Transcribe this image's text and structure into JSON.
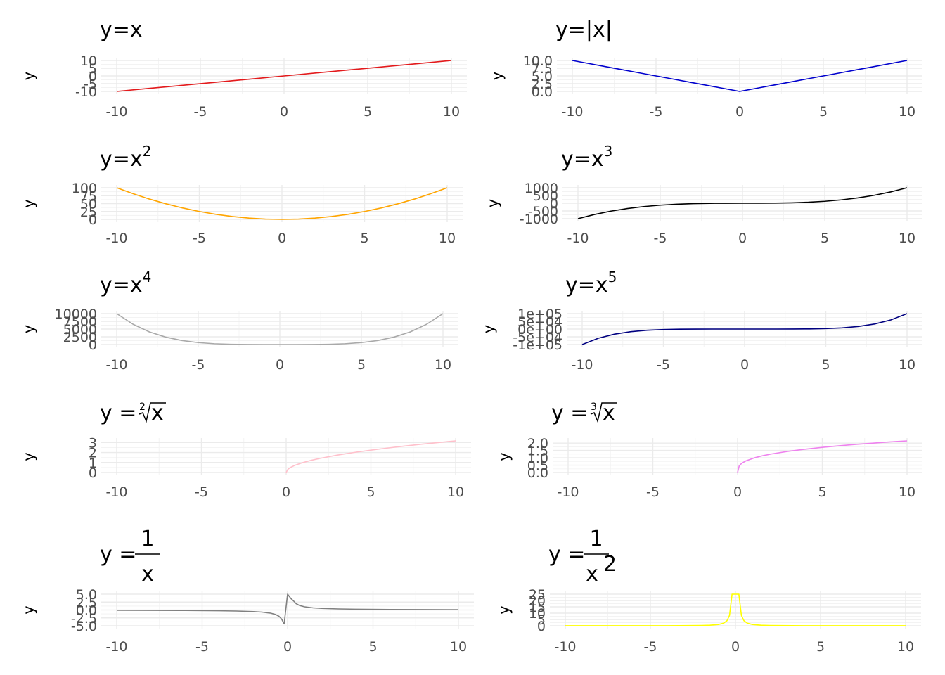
{
  "chart_data": [
    {
      "type": "line",
      "title": "y=x",
      "ylabel": "y",
      "xlim": [
        -10,
        10
      ],
      "ylim": [
        -10,
        10
      ],
      "xticks": [
        -10,
        -5,
        0,
        5,
        10
      ],
      "yticks": [
        "-10",
        "-5",
        "0",
        "5",
        "10"
      ],
      "ytick_values": [
        -10,
        -5,
        0,
        5,
        10
      ],
      "color": "#e31a1c",
      "x": [
        -10,
        -8,
        -6,
        -4,
        -2,
        0,
        2,
        4,
        6,
        8,
        10
      ],
      "y": [
        -10,
        -8,
        -6,
        -4,
        -2,
        0,
        2,
        4,
        6,
        8,
        10
      ]
    },
    {
      "type": "line",
      "title": "y=|x|",
      "ylabel": "y",
      "xlim": [
        -10,
        10
      ],
      "ylim": [
        0,
        10
      ],
      "xticks": [
        -10,
        -5,
        0,
        5,
        10
      ],
      "yticks": [
        "0.0",
        "2.5",
        "5.0",
        "7.5",
        "10.0"
      ],
      "ytick_values": [
        0,
        2.5,
        5,
        7.5,
        10
      ],
      "color": "#0000cd",
      "x": [
        -10,
        -9,
        -8,
        -7,
        -6,
        -5,
        -4,
        -3,
        -2,
        -1,
        0,
        1,
        2,
        3,
        4,
        5,
        6,
        7,
        8,
        9,
        10
      ],
      "y": [
        10,
        9,
        8,
        7,
        6,
        5,
        4,
        3,
        2,
        1,
        0,
        1,
        2,
        3,
        4,
        5,
        6,
        7,
        8,
        9,
        10
      ]
    },
    {
      "type": "line",
      "title": "y=x",
      "title_sup": "2",
      "ylabel": "y",
      "xlim": [
        -10,
        10
      ],
      "ylim": [
        0,
        100
      ],
      "xticks": [
        -10,
        -5,
        0,
        5,
        10
      ],
      "yticks": [
        "0",
        "25",
        "50",
        "75",
        "100"
      ],
      "ytick_values": [
        0,
        25,
        50,
        75,
        100
      ],
      "color": "#ffa500",
      "x": [
        -10,
        -9,
        -8,
        -7,
        -6,
        -5,
        -4,
        -3,
        -2,
        -1,
        0,
        1,
        2,
        3,
        4,
        5,
        6,
        7,
        8,
        9,
        10
      ],
      "y": [
        100,
        81,
        64,
        49,
        36,
        25,
        16,
        9,
        4,
        1,
        0,
        1,
        4,
        9,
        16,
        25,
        36,
        49,
        64,
        81,
        100
      ]
    },
    {
      "type": "line",
      "title": "y=x",
      "title_sup": "3",
      "ylabel": "y",
      "xlim": [
        -10,
        10
      ],
      "ylim": [
        -1000,
        1000
      ],
      "xticks": [
        -10,
        -5,
        0,
        5,
        10
      ],
      "yticks": [
        "-1000",
        "-500",
        "0",
        "500",
        "1000"
      ],
      "ytick_values": [
        -1000,
        -500,
        0,
        500,
        1000
      ],
      "color": "#000000",
      "x": [
        -10,
        -9,
        -8,
        -7,
        -6,
        -5,
        -4,
        -3,
        -2,
        -1,
        0,
        1,
        2,
        3,
        4,
        5,
        6,
        7,
        8,
        9,
        10
      ],
      "y": [
        -1000,
        -729,
        -512,
        -343,
        -216,
        -125,
        -64,
        -27,
        -8,
        -1,
        0,
        1,
        8,
        27,
        64,
        125,
        216,
        343,
        512,
        729,
        1000
      ]
    },
    {
      "type": "line",
      "title": "y=x",
      "title_sup": "4",
      "ylabel": "y",
      "xlim": [
        -10,
        10
      ],
      "ylim": [
        0,
        10000
      ],
      "xticks": [
        -10,
        -5,
        0,
        5,
        10
      ],
      "yticks": [
        "0",
        "2500",
        "5000",
        "7500",
        "10000"
      ],
      "ytick_values": [
        0,
        2500,
        5000,
        7500,
        10000
      ],
      "color": "#a9a9a9",
      "x": [
        -10,
        -9,
        -8,
        -7,
        -6,
        -5,
        -4,
        -3,
        -2,
        -1,
        0,
        1,
        2,
        3,
        4,
        5,
        6,
        7,
        8,
        9,
        10
      ],
      "y": [
        10000,
        6561,
        4096,
        2401,
        1296,
        625,
        256,
        81,
        16,
        1,
        0,
        1,
        16,
        81,
        256,
        625,
        1296,
        2401,
        4096,
        6561,
        10000
      ]
    },
    {
      "type": "line",
      "title": "y=x",
      "title_sup": "5",
      "ylabel": "y",
      "xlim": [
        -10,
        10
      ],
      "ylim": [
        -100000,
        100000
      ],
      "xticks": [
        -10,
        -5,
        0,
        5,
        10
      ],
      "yticks": [
        "-1e+05",
        "-5e+04",
        "0e+00",
        "5e+04",
        "1e+05"
      ],
      "ytick_values": [
        -100000,
        -50000,
        0,
        50000,
        100000
      ],
      "color": "#000080",
      "x": [
        -10,
        -9,
        -8,
        -7,
        -6,
        -5,
        -4,
        -3,
        -2,
        -1,
        0,
        1,
        2,
        3,
        4,
        5,
        6,
        7,
        8,
        9,
        10
      ],
      "y": [
        -100000,
        -59049,
        -32768,
        -16807,
        -7776,
        -3125,
        -1024,
        -243,
        -32,
        -1,
        0,
        1,
        32,
        243,
        1024,
        3125,
        7776,
        16807,
        32768,
        59049,
        100000
      ]
    },
    {
      "type": "line",
      "title": "y = ",
      "title_root_index": "2",
      "title_radicand": "x",
      "ylabel": "y",
      "xlim": [
        -10,
        10
      ],
      "ylim": [
        0,
        3.16
      ],
      "xticks": [
        -10,
        -5,
        0,
        5,
        10
      ],
      "yticks": [
        "0",
        "1",
        "2",
        "3"
      ],
      "ytick_values": [
        0,
        1,
        2,
        3
      ],
      "color": "#ffc0cb",
      "x": [
        0,
        0.1,
        0.25,
        0.5,
        1,
        1.5,
        2,
        3,
        4,
        5,
        6,
        7,
        8,
        9,
        10
      ],
      "y": [
        0,
        0.316,
        0.5,
        0.707,
        1,
        1.225,
        1.414,
        1.732,
        2,
        2.236,
        2.449,
        2.646,
        2.828,
        3,
        3.162
      ]
    },
    {
      "type": "line",
      "title": "y = ",
      "title_root_index": "3",
      "title_radicand": "x",
      "ylabel": "y",
      "xlim": [
        -10,
        10
      ],
      "ylim": [
        0,
        2.15
      ],
      "xticks": [
        -10,
        -5,
        0,
        5,
        10
      ],
      "yticks": [
        "0.0",
        "0.5",
        "1.0",
        "1.5",
        "2.0"
      ],
      "ytick_values": [
        0,
        0.5,
        1,
        1.5,
        2
      ],
      "color": "#ee82ee",
      "x": [
        0,
        0.1,
        0.25,
        0.5,
        1,
        1.5,
        2,
        3,
        4,
        5,
        6,
        7,
        8,
        9,
        10
      ],
      "y": [
        0,
        0.464,
        0.63,
        0.794,
        1,
        1.145,
        1.26,
        1.442,
        1.587,
        1.71,
        1.817,
        1.913,
        2,
        2.08,
        2.154
      ]
    },
    {
      "type": "line",
      "title": "y = ",
      "title_num": "1",
      "title_den": "x",
      "ylabel": "y",
      "xlim": [
        -10,
        10
      ],
      "ylim": [
        -5,
        5
      ],
      "xticks": [
        -10,
        -5,
        0,
        5,
        10
      ],
      "yticks": [
        "-5.0",
        "-2.5",
        "0.0",
        "2.5",
        "5.0"
      ],
      "ytick_values": [
        -5,
        -2.5,
        0,
        2.5,
        5
      ],
      "color": "#808080",
      "x": [
        -10,
        -8,
        -6,
        -4,
        -3,
        -2,
        -1.5,
        -1,
        -0.7,
        -0.5,
        -0.35,
        -0.2,
        0,
        0.2,
        0.35,
        0.5,
        0.7,
        1,
        1.5,
        2,
        3,
        4,
        6,
        8,
        10
      ],
      "y": [
        -0.1,
        -0.125,
        -0.167,
        -0.25,
        -0.333,
        -0.5,
        -0.667,
        -1,
        -1.43,
        -2,
        -2.86,
        -4.4,
        5,
        3.6,
        2.86,
        2,
        1.43,
        1,
        0.667,
        0.5,
        0.333,
        0.25,
        0.167,
        0.125,
        0.1
      ]
    },
    {
      "type": "line",
      "title": "y = ",
      "title_num": "1",
      "title_den": "x",
      "title_den_sup": "2",
      "ylabel": "y",
      "xlim": [
        -10,
        10
      ],
      "ylim": [
        0,
        25
      ],
      "xticks": [
        -10,
        -5,
        0,
        5,
        10
      ],
      "yticks": [
        "0",
        "5",
        "10",
        "15",
        "20",
        "25"
      ],
      "ytick_values": [
        0,
        5,
        10,
        15,
        20,
        25
      ],
      "color": "#ffff00",
      "x": [
        -10,
        -8,
        -6,
        -4,
        -2,
        -1.5,
        -1,
        -0.7,
        -0.5,
        -0.35,
        -0.2,
        0.2,
        0.35,
        0.5,
        0.7,
        1,
        1.5,
        2,
        4,
        6,
        8,
        10
      ],
      "y": [
        0.01,
        0.016,
        0.028,
        0.0625,
        0.25,
        0.444,
        1,
        2.04,
        4,
        8.2,
        25,
        25,
        8.2,
        4,
        2.04,
        1,
        0.444,
        0.25,
        0.0625,
        0.028,
        0.016,
        0.01
      ]
    }
  ]
}
